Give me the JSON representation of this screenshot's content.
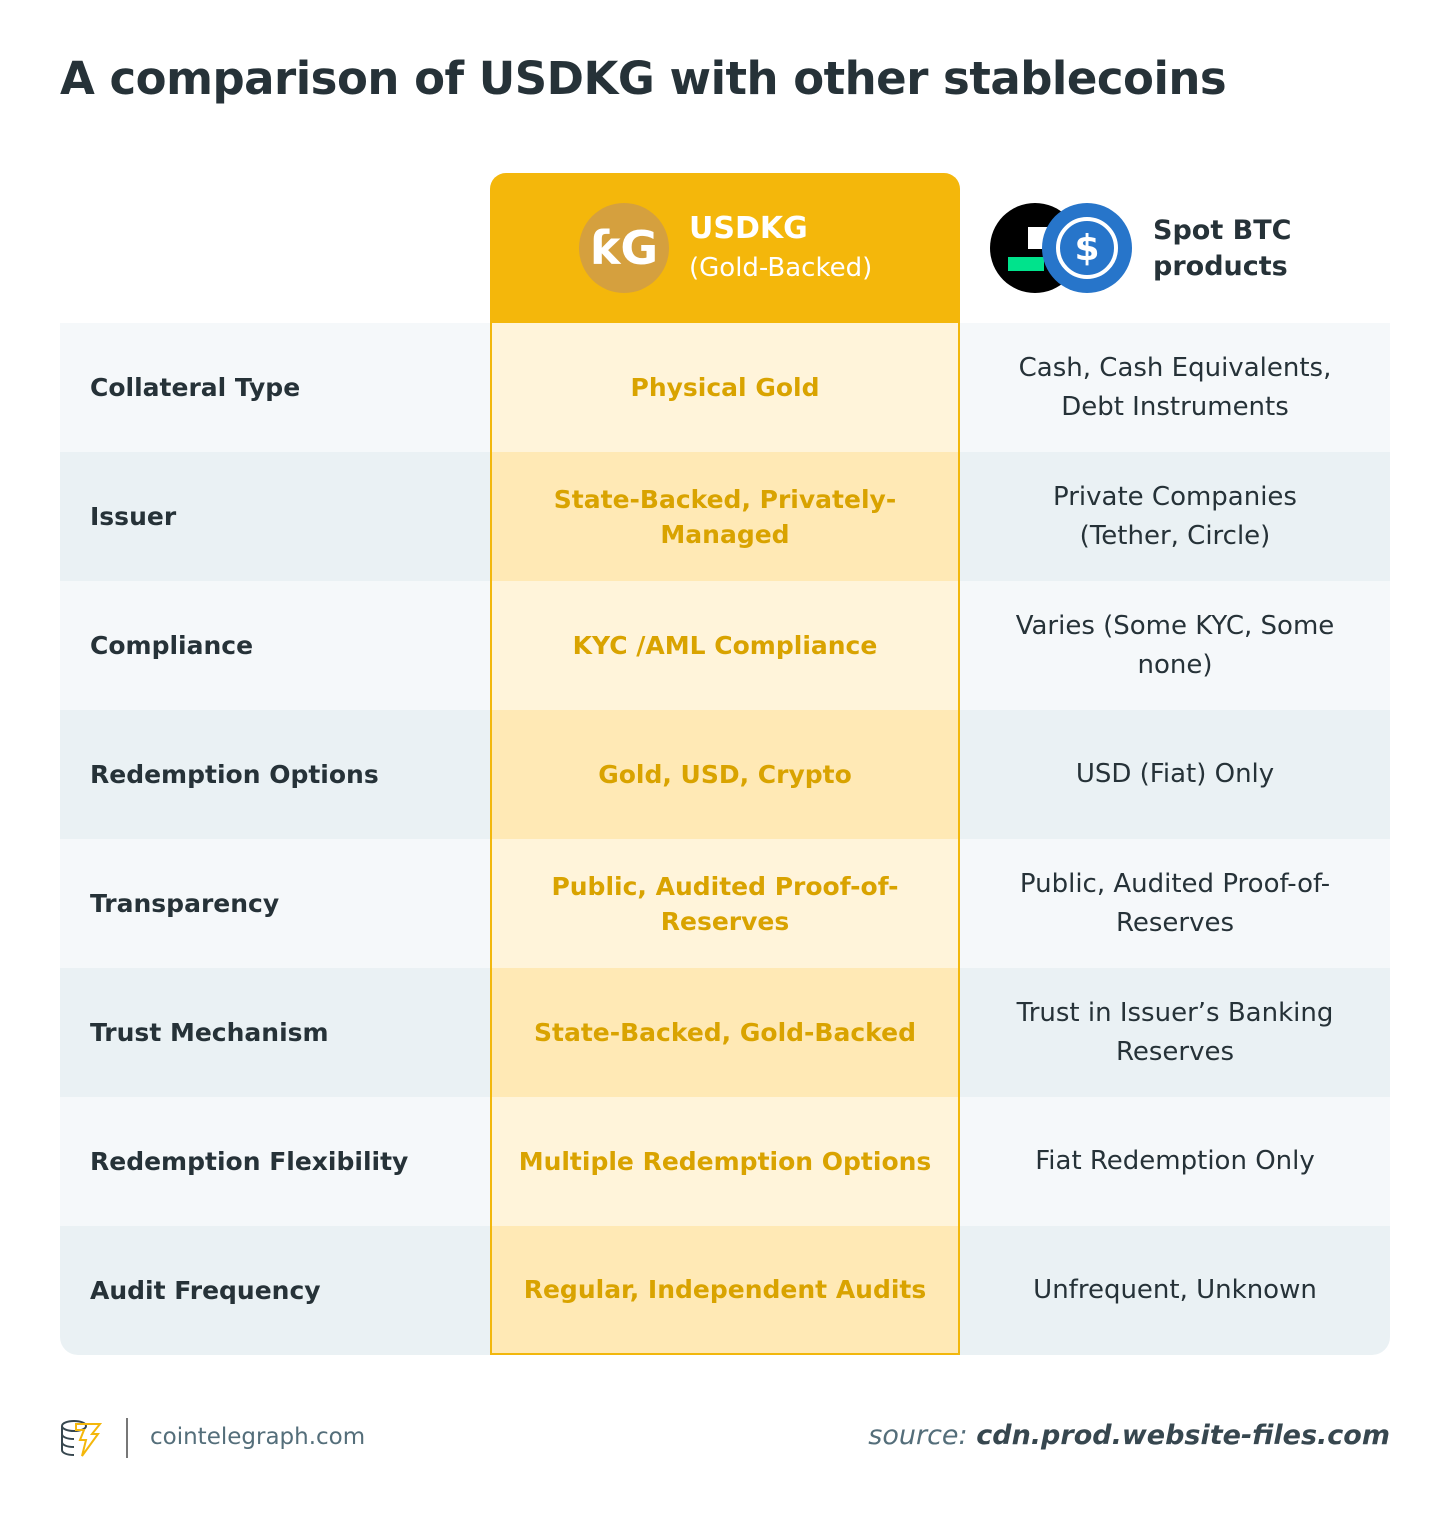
{
  "title": "A comparison of USDKG with other stablecoins",
  "columns": {
    "usdkg": {
      "name": "USDKG",
      "subtitle": "(Gold-Backed)",
      "logo_text": "ƙG",
      "icon": "usdkg-logo-icon"
    },
    "other": {
      "name": "Spot BTC products",
      "icons": [
        "black-coin-icon",
        "usdc-dollar-icon"
      ]
    }
  },
  "rows": [
    {
      "label": "Collateral Type",
      "usdkg": "Physical Gold",
      "other": "Cash, Cash Equivalents, Debt Instruments"
    },
    {
      "label": "Issuer",
      "usdkg": "State-Backed, Privately-Managed",
      "other": "Private Companies (Tether, Circle)"
    },
    {
      "label": "Compliance",
      "usdkg": "KYC /AML Compliance",
      "other": "Varies (Some KYC, Some none)"
    },
    {
      "label": "Redemption Options",
      "usdkg": "Gold, USD, Crypto",
      "other": "USD (Fiat) Only"
    },
    {
      "label": "Transparency",
      "usdkg": "Public, Audited Proof-of-Reserves",
      "other": "Public, Audited Proof-of-Reserves"
    },
    {
      "label": "Trust Mechanism",
      "usdkg": "State-Backed, Gold-Backed",
      "other": "Trust in Issuer’s Banking Reserves"
    },
    {
      "label": "Redemption Flexibility",
      "usdkg": "Multiple Redemption Options",
      "other": "Fiat Redemption Only"
    },
    {
      "label": "Audit Frequency",
      "usdkg": "Regular, Independent Audits",
      "other": "Unfrequent, Unknown"
    }
  ],
  "footer": {
    "site": "cointelegraph.com",
    "source_label": "source:",
    "source_value": "cdn.prod.website-files.com"
  },
  "colors": {
    "accent_gold": "#f4b70b",
    "gold_text": "#d9a300",
    "usdc_blue": "#2775ca",
    "text_dark": "#263238"
  }
}
